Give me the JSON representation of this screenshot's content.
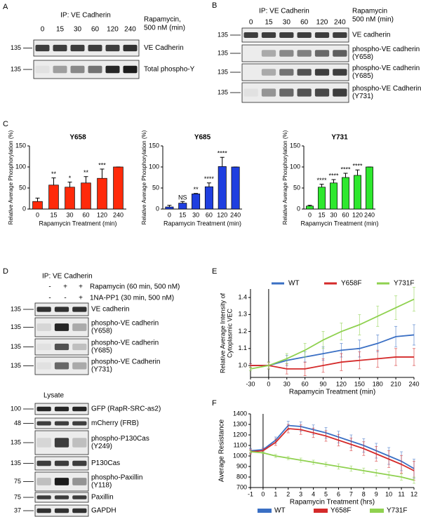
{
  "blots": {
    "A": {
      "panel": "A",
      "ip": "IP: VE Cadherin",
      "treatment": [
        "Rapamycin,",
        "500 nM (min)"
      ],
      "lanes": [
        "0",
        "15",
        "30",
        "60",
        "120",
        "240"
      ],
      "rows": [
        {
          "marker": "135",
          "label": [
            "VE Cadherin"
          ]
        },
        {
          "marker": "135",
          "label": [
            "Total phospho-Y"
          ]
        }
      ]
    },
    "B": {
      "panel": "B",
      "ip": "IP: VE Cadherin",
      "treatment": [
        "Rapamycin",
        "500 nM (min)"
      ],
      "lanes": [
        "0",
        "15",
        "30",
        "60",
        "120",
        "240"
      ],
      "rows": [
        {
          "marker": "135",
          "label": [
            "VE cadherin"
          ]
        },
        {
          "marker": "135",
          "label": [
            "phospho-VE cadherin",
            "(Y658)"
          ]
        },
        {
          "marker": "135",
          "label": [
            "phospho-VE cadherin",
            "(Y685)"
          ]
        },
        {
          "marker": "135",
          "label": [
            "phospho-VE Cadherin",
            "(Y731)"
          ]
        }
      ]
    },
    "D": {
      "panel": "D",
      "ip": "IP: VE Cadherin",
      "conditions": [
        {
          "signs": [
            "-",
            "+",
            "+"
          ],
          "label": "Rapamycin (60 min, 500 nM)"
        },
        {
          "signs": [
            "-",
            "-",
            "+"
          ],
          "label": "1NA-PP1 (30 min, 500 nM)"
        }
      ],
      "rows": [
        {
          "marker": "135",
          "label": [
            "VE cadherin"
          ]
        },
        {
          "marker": "135",
          "label": [
            "phospho-VE cadherin",
            "(Y658)"
          ]
        },
        {
          "marker": "135",
          "label": [
            "phospho-VE cadherin",
            "(Y685)"
          ]
        },
        {
          "marker": "135",
          "label": [
            "phospho-VE Cadherin",
            "(Y731)"
          ]
        }
      ],
      "lysate": "Lysate",
      "lysate_rows": [
        {
          "marker": "100",
          "label": [
            "GFP (RapR-SRC-as2)"
          ]
        },
        {
          "marker": "48",
          "label": [
            "mCherry (FRB)"
          ]
        },
        {
          "marker": "135",
          "label": [
            "phospho-P130Cas",
            "(Y249)"
          ]
        },
        {
          "marker": "135",
          "label": [
            "P130Cas"
          ]
        },
        {
          "marker": "75",
          "label": [
            "phospho-Paxillin",
            "(Y118)"
          ]
        },
        {
          "marker": "75",
          "label": [
            "Paxillin"
          ]
        },
        {
          "marker": "37",
          "label": [
            "GAPDH"
          ]
        }
      ]
    }
  },
  "chart_data": [
    {
      "type": "bar",
      "panel": "C",
      "title": "Y658",
      "categories": [
        "0",
        "15",
        "30",
        "60",
        "120",
        "240"
      ],
      "values": [
        18,
        57,
        52,
        62,
        73,
        100
      ],
      "errors": [
        8,
        17,
        12,
        15,
        22,
        0
      ],
      "annotations": [
        null,
        "**",
        "*",
        "**",
        "***",
        null
      ],
      "color": "#ff2a0a",
      "ylim": [
        0,
        150
      ],
      "yticks": [
        0,
        50,
        100,
        150
      ],
      "xlabel": "Rapamycin Treatment (min)",
      "ylabel": "Relative Average Phosphorylation (%)"
    },
    {
      "type": "bar",
      "title": "Y685",
      "categories": [
        "0",
        "15",
        "30",
        "60",
        "120",
        "240"
      ],
      "values": [
        5,
        14,
        36,
        53,
        101,
        100
      ],
      "errors": [
        4,
        4,
        1,
        9,
        22,
        0
      ],
      "annotations": [
        null,
        "NS",
        "**",
        "****",
        "****",
        null
      ],
      "color": "#1f3fe0",
      "ylim": [
        0,
        150
      ],
      "yticks": [
        0,
        50,
        100,
        150
      ],
      "xlabel": "Rapamycin Treatment (min)",
      "ylabel": "Relative Average Phosphorylation (%)"
    },
    {
      "type": "bar",
      "title": "Y731",
      "categories": [
        "0",
        "15",
        "30",
        "60",
        "120",
        "240"
      ],
      "values": [
        7,
        52,
        62,
        75,
        80,
        100
      ],
      "errors": [
        2,
        7,
        8,
        10,
        13,
        0
      ],
      "annotations": [
        null,
        "****",
        "****",
        "****",
        "****",
        null
      ],
      "color": "#2ee82e",
      "ylim": [
        0,
        150
      ],
      "yticks": [
        0,
        50,
        100,
        150
      ],
      "xlabel": "Rapamycin Treatment (min)",
      "ylabel": "Relative Average Phosphorylation (%)"
    },
    {
      "type": "line",
      "panel": "E",
      "legend": "top",
      "vline": 0,
      "x": [
        -30,
        0,
        30,
        60,
        90,
        120,
        150,
        180,
        210,
        240
      ],
      "series": [
        {
          "name": "WT",
          "color": "#3a6fc4",
          "values": [
            1.0,
            1.0,
            1.03,
            1.05,
            1.07,
            1.09,
            1.1,
            1.13,
            1.17,
            1.18
          ],
          "errors": [
            0.01,
            0.02,
            0.03,
            0.03,
            0.04,
            0.04,
            0.05,
            0.05,
            0.06,
            0.06
          ]
        },
        {
          "name": "Y658F",
          "color": "#d42a2a",
          "values": [
            1.0,
            1.0,
            0.98,
            0.98,
            1.0,
            1.02,
            1.03,
            1.04,
            1.05,
            1.05
          ],
          "errors": [
            0.01,
            0.02,
            0.03,
            0.04,
            0.04,
            0.05,
            0.05,
            0.05,
            0.05,
            0.05
          ]
        },
        {
          "name": "Y731F",
          "color": "#8fd14f",
          "values": [
            0.98,
            1.0,
            1.04,
            1.09,
            1.15,
            1.2,
            1.24,
            1.29,
            1.34,
            1.39
          ],
          "errors": [
            0.01,
            0.02,
            0.03,
            0.04,
            0.05,
            0.05,
            0.06,
            0.06,
            0.07,
            0.07
          ]
        }
      ],
      "xlim": [
        -30,
        240
      ],
      "xticks": [
        -30,
        0,
        30,
        60,
        90,
        120,
        150,
        180,
        210,
        240
      ],
      "ylim": [
        0.93,
        1.45
      ],
      "yticks": [
        {
          "value": 1.0,
          "label": "1.0"
        },
        {
          "value": 1.1,
          "label": "1.1"
        },
        {
          "value": 1.2,
          "label": "1.2"
        },
        {
          "value": 1.3,
          "label": "1.3"
        },
        {
          "value": 1.4,
          "label": "1.4"
        }
      ],
      "xlabel": "Rapamycin Treatment (min)",
      "ylabel": [
        "Relative Average Intensity of",
        "Cytoplasmic VEC"
      ]
    },
    {
      "type": "line",
      "panel": "F",
      "legend": "bottom",
      "vline": 0,
      "x": [
        -1,
        0,
        1,
        2,
        3,
        4,
        5,
        6,
        7,
        8,
        9,
        10,
        11,
        12
      ],
      "series": [
        {
          "name": "WT",
          "color": "#3a6fc4",
          "values": [
            1050,
            1060,
            1150,
            1290,
            1280,
            1250,
            1220,
            1180,
            1140,
            1100,
            1050,
            1000,
            950,
            880
          ],
          "errors": [
            20,
            20,
            30,
            40,
            45,
            45,
            50,
            55,
            60,
            65,
            70,
            80,
            90,
            90
          ]
        },
        {
          "name": "Y658F",
          "color": "#d42a2a",
          "values": [
            1040,
            1050,
            1130,
            1260,
            1250,
            1220,
            1190,
            1150,
            1110,
            1070,
            1020,
            970,
            920,
            860
          ],
          "errors": [
            20,
            20,
            30,
            40,
            45,
            45,
            50,
            55,
            60,
            65,
            70,
            80,
            85,
            90
          ]
        },
        {
          "name": "Y731F",
          "color": "#8fd14f",
          "values": [
            1040,
            1030,
            1000,
            980,
            960,
            940,
            920,
            900,
            880,
            860,
            840,
            820,
            800,
            770
          ],
          "errors": [
            10,
            10,
            15,
            15,
            20,
            20,
            20,
            25,
            25,
            25,
            30,
            30,
            30,
            30
          ]
        }
      ],
      "xlim": [
        -1,
        12
      ],
      "xticks": [
        -1,
        0,
        1,
        2,
        3,
        4,
        5,
        6,
        7,
        8,
        9,
        10,
        11,
        12
      ],
      "ylim": [
        700,
        1400
      ],
      "yticks": [
        700,
        800,
        900,
        1000,
        1100,
        1200,
        1300,
        1400
      ],
      "xlabel": "Rapamycin Treatment (hrs)",
      "ylabel": "Average Resistance"
    }
  ]
}
